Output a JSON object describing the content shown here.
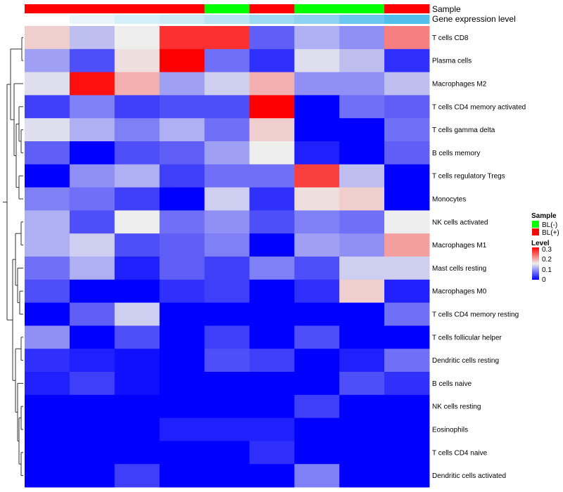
{
  "chart_data": {
    "type": "heatmap",
    "rows": [
      "T cells CD8",
      "Plasma cells",
      "Macrophages M2",
      "T cells CD4 memory activated",
      "T cells gamma delta",
      "B cells memory",
      "T cells regulatory  Tregs",
      "Monocytes",
      "NK cells activated",
      "Macrophages M1",
      "Mast cells resting",
      "Macrophages M0",
      "T cells CD4 memory resting",
      "T cells follicular helper",
      "Dendritic cells resting",
      "B cells naive",
      "NK cells resting",
      "Eosinophils",
      "T cells CD4 naive",
      "Dendritic cells activated"
    ],
    "columns": 9,
    "values": [
      [
        0.17,
        0.12,
        0.15,
        0.27,
        0.27,
        0.06,
        0.11,
        0.09,
        0.22
      ],
      [
        0.1,
        0.05,
        0.16,
        0.3,
        0.07,
        0.03,
        0.14,
        0.12,
        0.03
      ],
      [
        0.14,
        0.29,
        0.19,
        0.1,
        0.13,
        0.19,
        0.09,
        0.09,
        0.12
      ],
      [
        0.04,
        0.08,
        0.04,
        0.05,
        0.05,
        0.3,
        0.0,
        0.07,
        0.06
      ],
      [
        0.14,
        0.11,
        0.08,
        0.11,
        0.07,
        0.17,
        0.0,
        0.0,
        0.07
      ],
      [
        0.06,
        0.0,
        0.05,
        0.06,
        0.1,
        0.15,
        0.02,
        0.0,
        0.06
      ],
      [
        0.0,
        0.09,
        0.11,
        0.04,
        0.07,
        0.07,
        0.26,
        0.12,
        0.0
      ],
      [
        0.08,
        0.07,
        0.04,
        0.0,
        0.13,
        0.03,
        0.16,
        0.17,
        0.0
      ],
      [
        0.11,
        0.05,
        0.15,
        0.07,
        0.09,
        0.05,
        0.08,
        0.07,
        0.15
      ],
      [
        0.11,
        0.13,
        0.05,
        0.06,
        0.08,
        0.0,
        0.1,
        0.09,
        0.2
      ],
      [
        0.07,
        0.11,
        0.02,
        0.06,
        0.04,
        0.08,
        0.05,
        0.13,
        0.13
      ],
      [
        0.05,
        0.0,
        0.0,
        0.03,
        0.04,
        0.0,
        0.03,
        0.17,
        0.02
      ],
      [
        0.0,
        0.06,
        0.13,
        0.0,
        0.0,
        0.0,
        0.0,
        0.0,
        0.07
      ],
      [
        0.09,
        0.0,
        0.05,
        0.0,
        0.04,
        0.0,
        0.05,
        0.0,
        0.0
      ],
      [
        0.03,
        0.02,
        0.01,
        0.0,
        0.05,
        0.04,
        0.0,
        0.02,
        0.07
      ],
      [
        0.02,
        0.04,
        0.01,
        0.0,
        0.0,
        0.0,
        0.0,
        0.05,
        0.03
      ],
      [
        0.0,
        0.0,
        0.0,
        0.0,
        0.0,
        0.0,
        0.04,
        0.0,
        0.0
      ],
      [
        0.0,
        0.0,
        0.0,
        0.02,
        0.02,
        0.02,
        0.0,
        0.0,
        0.0
      ],
      [
        0.0,
        0.0,
        0.0,
        0.0,
        0.0,
        0.03,
        0.0,
        0.0,
        0.0
      ],
      [
        0.0,
        0.0,
        0.04,
        0.0,
        0.0,
        0.0,
        0.08,
        0.0,
        0.0
      ]
    ],
    "value_range": [
      0,
      0.3
    ],
    "color_scale": {
      "low": "#0000ff",
      "mid": "#eeeeee",
      "high": "#ff0000"
    },
    "annotations": [
      {
        "label": "Sample",
        "segments": [
          {
            "value": "BL(+)",
            "count": 4
          },
          {
            "value": "BL(-)",
            "count": 1
          },
          {
            "value": "BL(+)",
            "count": 1
          },
          {
            "value": "BL(-)",
            "count": 2
          },
          {
            "value": "BL(+)",
            "count": 1
          }
        ]
      },
      {
        "label": "Gene expression level",
        "colors": [
          "#ffffff",
          "#e8f6fc",
          "#d6f0fa",
          "#cbebf8",
          "#b8e4f5",
          "#9fdaf3",
          "#8dd3f1",
          "#6ac8ee",
          "#50bfea"
        ]
      }
    ],
    "legend": {
      "placement": "right",
      "sample": {
        "title": "Sample",
        "entries": [
          {
            "label": "BL(-)",
            "color": "#00ff00"
          },
          {
            "label": "BL(+)",
            "color": "#ff0000"
          }
        ]
      },
      "level": {
        "title": "Level",
        "ticks": [
          "0.3",
          "0.2",
          "0.1",
          "0"
        ]
      }
    },
    "dendrogram": "rows"
  }
}
